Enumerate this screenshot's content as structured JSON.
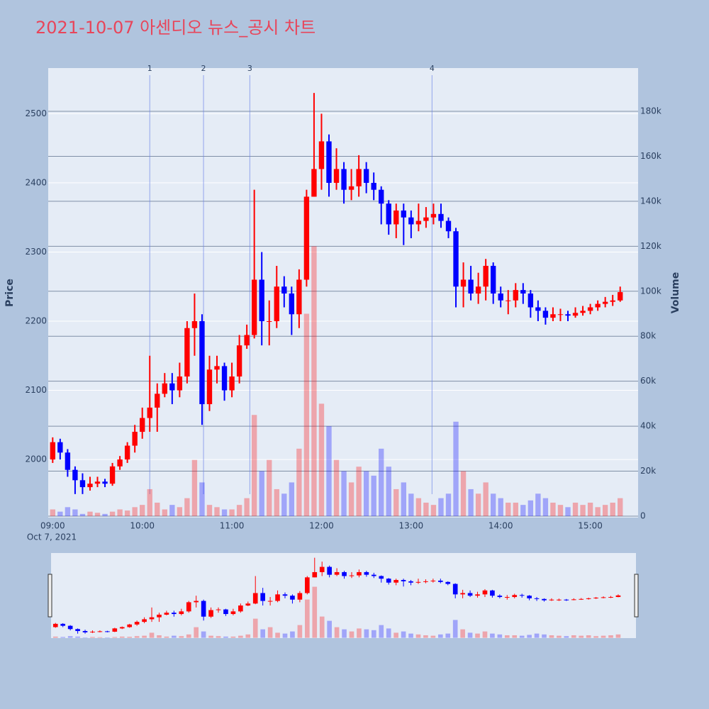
{
  "chart_data": {
    "type": "candlestick",
    "title": "2021-10-07 아센디오 뉴스_공시 차트",
    "y_label": "Price",
    "y2_label": "Volume",
    "x_date_label": "Oct 7, 2021",
    "increasing_color": "#ff0000",
    "decreasing_color": "#0000ff",
    "xlim": [
      "08:57",
      "15:32"
    ],
    "xticks": [
      "09:00",
      "10:00",
      "11:00",
      "12:00",
      "13:00",
      "14:00",
      "15:00"
    ],
    "ylim": [
      1916,
      2566
    ],
    "yticks": [
      2000,
      2100,
      2200,
      2300,
      2400,
      2500
    ],
    "y2lim": [
      -630,
      199230
    ],
    "y2ticks": [
      {
        "value": 0,
        "label": "0"
      },
      {
        "value": 20000,
        "label": "20k"
      },
      {
        "value": 40000,
        "label": "40k"
      },
      {
        "value": 60000,
        "label": "60k"
      },
      {
        "value": 80000,
        "label": "80k"
      },
      {
        "value": 100000,
        "label": "100k"
      },
      {
        "value": 120000,
        "label": "120k"
      },
      {
        "value": 140000,
        "label": "140k"
      },
      {
        "value": 160000,
        "label": "160k"
      },
      {
        "value": 180000,
        "label": "180k"
      }
    ],
    "grid": true,
    "annotations": [
      {
        "x": "10:05",
        "label": "1"
      },
      {
        "x": "10:41",
        "label": "2"
      },
      {
        "x": "11:12",
        "label": "3"
      },
      {
        "x": "13:14",
        "label": "4"
      }
    ],
    "x": [
      "09:00",
      "09:05",
      "09:10",
      "09:15",
      "09:20",
      "09:25",
      "09:30",
      "09:35",
      "09:40",
      "09:45",
      "09:50",
      "09:55",
      "10:00",
      "10:05",
      "10:10",
      "10:15",
      "10:20",
      "10:25",
      "10:30",
      "10:35",
      "10:40",
      "10:45",
      "10:50",
      "10:55",
      "11:00",
      "11:05",
      "11:10",
      "11:15",
      "11:20",
      "11:25",
      "11:30",
      "11:35",
      "11:40",
      "11:45",
      "11:50",
      "11:55",
      "12:00",
      "12:05",
      "12:10",
      "12:15",
      "12:20",
      "12:25",
      "12:30",
      "12:35",
      "12:40",
      "12:45",
      "12:50",
      "12:55",
      "13:00",
      "13:05",
      "13:10",
      "13:15",
      "13:20",
      "13:25",
      "13:30",
      "13:35",
      "13:40",
      "13:45",
      "13:50",
      "13:55",
      "14:00",
      "14:05",
      "14:10",
      "14:15",
      "14:20",
      "14:25",
      "14:30",
      "14:35",
      "14:40",
      "14:45",
      "14:50",
      "14:55",
      "15:00",
      "15:05",
      "15:10",
      "15:15",
      "15:20"
    ],
    "open": [
      2000,
      2025,
      2010,
      1985,
      1970,
      1960,
      1965,
      1968,
      1965,
      1990,
      2000,
      2020,
      2040,
      2060,
      2075,
      2095,
      2110,
      2100,
      2120,
      2190,
      2200,
      2080,
      2130,
      2135,
      2100,
      2120,
      2165,
      2180,
      2260,
      2200,
      2200,
      2250,
      2240,
      2210,
      2260,
      2380,
      2420,
      2460,
      2400,
      2420,
      2390,
      2395,
      2420,
      2400,
      2390,
      2370,
      2340,
      2360,
      2350,
      2340,
      2345,
      2350,
      2355,
      2345,
      2330,
      2250,
      2260,
      2240,
      2250,
      2280,
      2240,
      2230,
      2230,
      2245,
      2240,
      2220,
      2215,
      2205,
      2210,
      2210,
      2208,
      2212,
      2215,
      2220,
      2225,
      2228,
      2230
    ],
    "high": [
      2032,
      2030,
      2015,
      1990,
      1980,
      1975,
      1975,
      1972,
      1995,
      2005,
      2025,
      2050,
      2075,
      2150,
      2110,
      2125,
      2125,
      2140,
      2200,
      2240,
      2210,
      2150,
      2150,
      2140,
      2140,
      2180,
      2195,
      2390,
      2300,
      2230,
      2280,
      2265,
      2250,
      2275,
      2390,
      2530,
      2500,
      2470,
      2450,
      2430,
      2420,
      2440,
      2430,
      2415,
      2395,
      2375,
      2370,
      2370,
      2360,
      2370,
      2365,
      2370,
      2370,
      2350,
      2335,
      2285,
      2280,
      2270,
      2290,
      2285,
      2250,
      2245,
      2255,
      2255,
      2245,
      2230,
      2220,
      2220,
      2218,
      2215,
      2220,
      2222,
      2225,
      2230,
      2235,
      2238,
      2250
    ],
    "low": [
      1995,
      2000,
      1975,
      1950,
      1950,
      1955,
      1960,
      1960,
      1962,
      1985,
      1995,
      2010,
      2030,
      2040,
      2040,
      2090,
      2080,
      2090,
      2110,
      2150,
      2050,
      2070,
      2110,
      2085,
      2090,
      2110,
      2160,
      2175,
      2165,
      2165,
      2190,
      2220,
      2180,
      2190,
      2250,
      2380,
      2390,
      2380,
      2390,
      2370,
      2375,
      2380,
      2385,
      2375,
      2340,
      2325,
      2320,
      2310,
      2320,
      2330,
      2335,
      2340,
      2335,
      2320,
      2220,
      2220,
      2230,
      2225,
      2230,
      2225,
      2220,
      2210,
      2220,
      2225,
      2205,
      2200,
      2195,
      2200,
      2200,
      2200,
      2205,
      2208,
      2210,
      2215,
      2220,
      2222,
      2228
    ],
    "close": [
      2025,
      2010,
      1985,
      1970,
      1960,
      1965,
      1968,
      1965,
      1990,
      2000,
      2020,
      2040,
      2060,
      2075,
      2095,
      2110,
      2100,
      2120,
      2190,
      2200,
      2080,
      2130,
      2135,
      2100,
      2120,
      2165,
      2180,
      2260,
      2200,
      2200,
      2250,
      2240,
      2210,
      2260,
      2380,
      2420,
      2460,
      2400,
      2420,
      2390,
      2395,
      2420,
      2400,
      2390,
      2370,
      2340,
      2360,
      2350,
      2340,
      2345,
      2350,
      2355,
      2345,
      2330,
      2250,
      2260,
      2240,
      2250,
      2280,
      2240,
      2230,
      2230,
      2245,
      2240,
      2220,
      2215,
      2205,
      2210,
      2210,
      2208,
      2212,
      2215,
      2220,
      2225,
      2228,
      2230,
      2242
    ],
    "volume": [
      3000,
      2000,
      4000,
      3000,
      1000,
      2000,
      1500,
      1000,
      2000,
      3000,
      2500,
      4000,
      5000,
      12000,
      6000,
      3000,
      5000,
      4000,
      8000,
      25000,
      15000,
      5000,
      4000,
      3000,
      3000,
      5000,
      8000,
      45000,
      20000,
      25000,
      12000,
      10000,
      15000,
      30000,
      90000,
      120000,
      50000,
      40000,
      25000,
      20000,
      15000,
      22000,
      20000,
      18000,
      30000,
      22000,
      12000,
      15000,
      10000,
      8000,
      6000,
      5000,
      8000,
      10000,
      42000,
      20000,
      12000,
      10000,
      15000,
      10000,
      8000,
      6000,
      6000,
      5000,
      7000,
      10000,
      8000,
      6000,
      5000,
      4000,
      6000,
      5000,
      6000,
      4000,
      5000,
      6000,
      8000
    ]
  }
}
